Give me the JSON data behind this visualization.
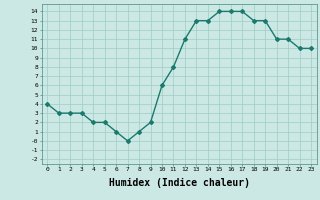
{
  "x": [
    0,
    1,
    2,
    3,
    4,
    5,
    6,
    7,
    8,
    9,
    10,
    11,
    12,
    13,
    14,
    15,
    16,
    17,
    18,
    19,
    20,
    21,
    22,
    23
  ],
  "y": [
    4,
    3,
    3,
    3,
    2,
    2,
    1,
    0,
    1,
    2,
    6,
    8,
    11,
    13,
    13,
    14,
    14,
    14,
    13,
    13,
    11,
    11,
    10,
    10
  ],
  "line_color": "#1a7a6e",
  "marker": "D",
  "markersize": 2,
  "linewidth": 1.0,
  "bg_color": "#cce8e4",
  "grid_color": "#9eccc6",
  "xlabel": "Humidex (Indice chaleur)",
  "xlabel_fontsize": 7,
  "ylim": [
    -2.5,
    14.8
  ],
  "xlim": [
    -0.5,
    23.5
  ],
  "yticks": [
    14,
    13,
    12,
    11,
    10,
    9,
    8,
    7,
    6,
    5,
    4,
    3,
    2,
    1,
    -1,
    -2,
    0
  ],
  "ytick_labels": [
    "14",
    "13",
    "12",
    "11",
    "10",
    "9",
    "8",
    "7",
    "6",
    "5",
    "4",
    "3",
    "2",
    "1",
    "-1",
    "-2",
    "-0"
  ]
}
